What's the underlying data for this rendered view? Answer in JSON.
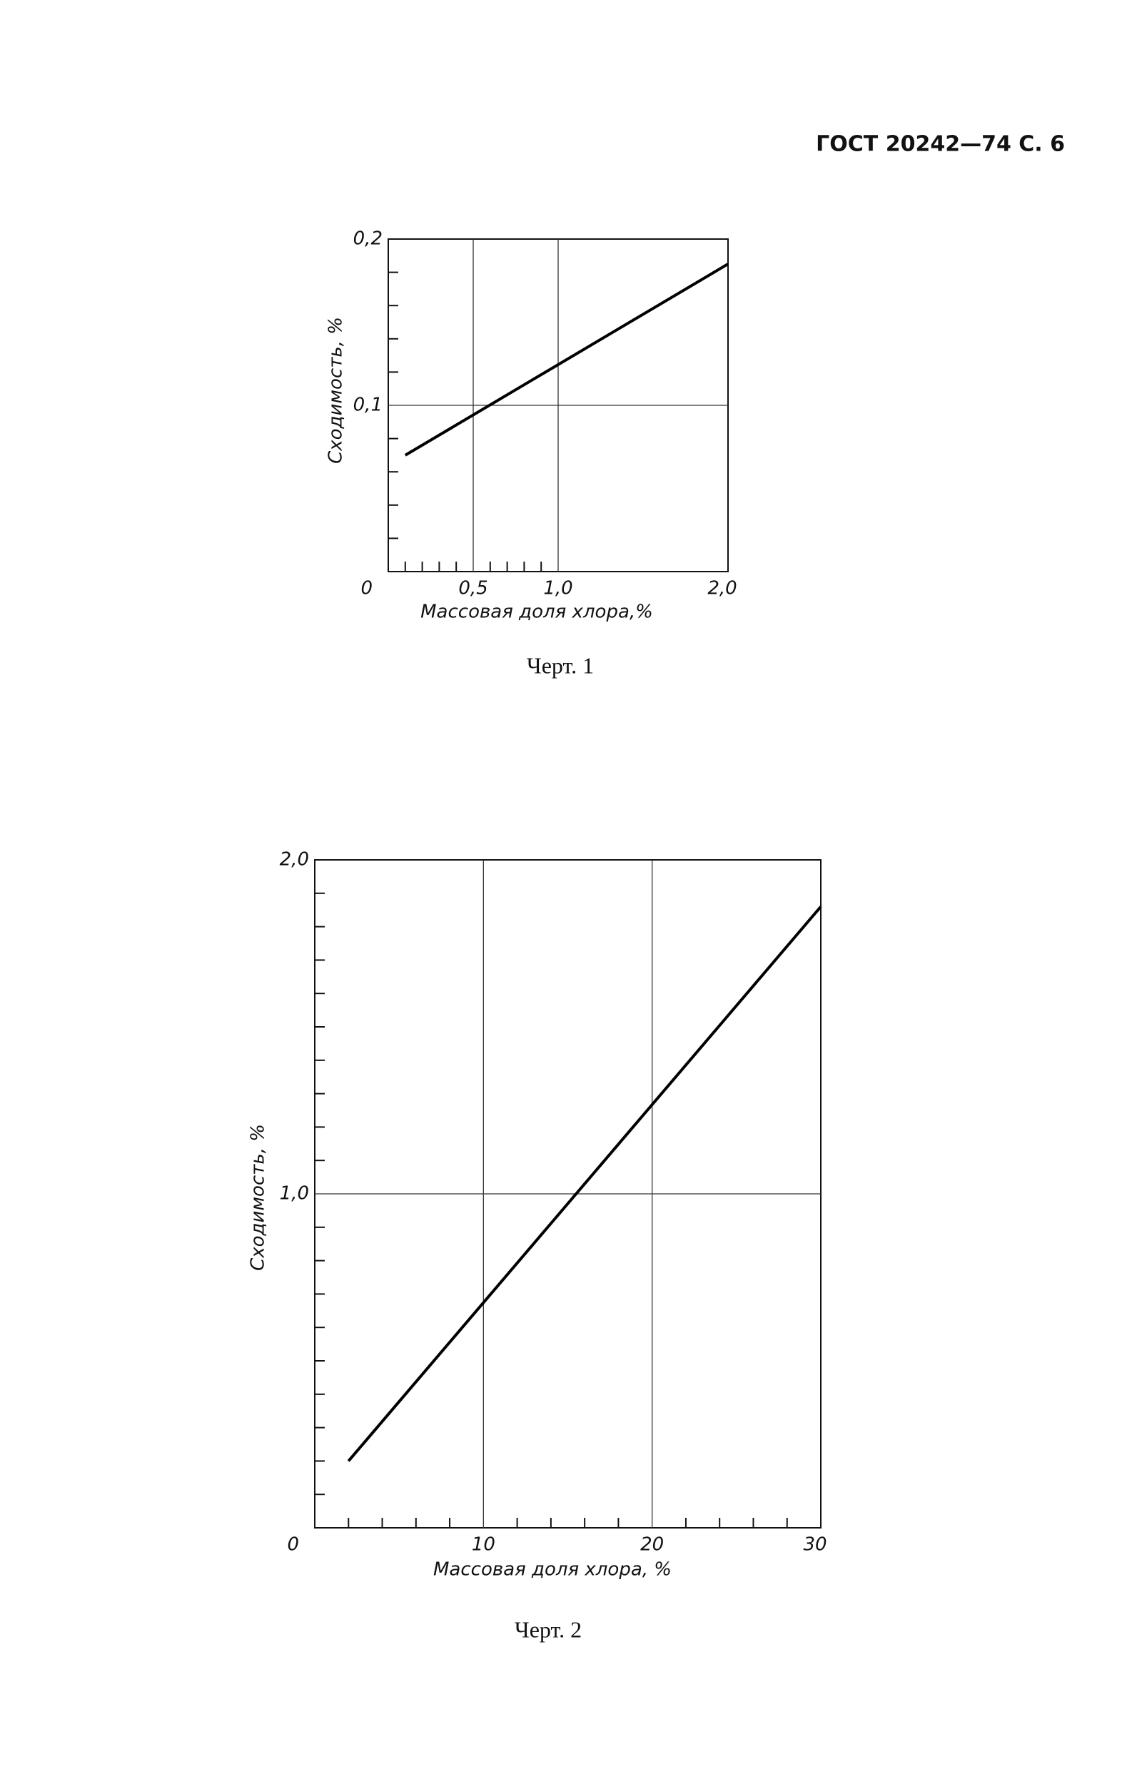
{
  "header": {
    "title": "ГОСТ 20242—74 С. 6"
  },
  "chart_data": [
    {
      "type": "line",
      "caption": "Черт. 1",
      "x_label": "Массовая доля хлора,%",
      "y_label": "Сходимость, %",
      "x": [
        0.1,
        2.0
      ],
      "series": [
        {
          "color": "#000000",
          "values": [
            0.07,
            0.185
          ]
        }
      ],
      "xlim": [
        0,
        2.0
      ],
      "ylim": [
        0,
        0.2
      ],
      "xticks": [
        0,
        {
          "value": 0.5,
          "label": "0,5"
        },
        {
          "value": 1.0,
          "label": "1,0"
        },
        {
          "value": 2.0,
          "label": "2,0"
        }
      ],
      "yticks": [
        {
          "value": 0.1,
          "label": "0,1"
        },
        {
          "value": 0.2,
          "label": "0,2"
        }
      ],
      "minor_xticks": [
        0.1,
        0.2,
        0.3,
        0.4,
        0.6,
        0.7,
        0.8,
        0.9
      ],
      "minor_yticks": [
        0.02,
        0.04,
        0.06,
        0.08,
        0.12,
        0.14,
        0.16,
        0.18
      ],
      "grid": true
    },
    {
      "type": "line",
      "caption": "Черт. 2",
      "x_label": "Массовая доля хлора, %",
      "y_label": "Сходимость, %",
      "x": [
        2,
        30
      ],
      "series": [
        {
          "color": "#000000",
          "values": [
            0.2,
            1.86
          ]
        }
      ],
      "xlim": [
        0,
        30
      ],
      "ylim": [
        0,
        2.0
      ],
      "xticks": [
        0,
        10,
        20,
        30
      ],
      "yticks": [
        {
          "value": 1.0,
          "label": "1,0"
        },
        {
          "value": 2.0,
          "label": "2,0"
        }
      ],
      "minor_xticks": [
        2,
        4,
        6,
        8,
        12,
        14,
        16,
        18,
        22,
        24,
        26,
        28
      ],
      "minor_yticks": [
        0.1,
        0.2,
        0.3,
        0.4,
        0.5,
        0.6,
        0.7,
        0.8,
        0.9,
        1.1,
        1.2,
        1.3,
        1.4,
        1.5,
        1.6,
        1.7,
        1.8,
        1.9
      ],
      "grid": true
    }
  ]
}
